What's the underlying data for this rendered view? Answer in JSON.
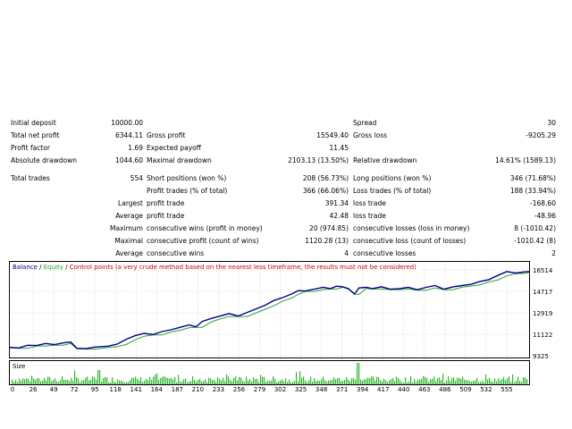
{
  "report": {
    "initial_deposit": {
      "label": "Initial deposit",
      "value": "10000.00"
    },
    "spread": {
      "label": "Spread",
      "value": "30"
    },
    "total_net_profit": {
      "label": "Total net profit",
      "value": "6344.11"
    },
    "gross_profit": {
      "label": "Gross profit",
      "value": "15549.40"
    },
    "gross_loss": {
      "label": "Gross loss",
      "value": "-9205.29"
    },
    "profit_factor": {
      "label": "Profit factor",
      "value": "1.69"
    },
    "expected_payoff": {
      "label": "Expected payoff",
      "value": "11.45"
    },
    "absolute_drawdown": {
      "label": "Absolute drawdown",
      "value": "1044.60"
    },
    "maximal_drawdown": {
      "label": "Maximal drawdown",
      "value": "2103.13 (13.50%)"
    },
    "relative_drawdown": {
      "label": "Relative drawdown",
      "value": "14.61% (1589.13)"
    },
    "total_trades": {
      "label": "Total trades",
      "value": "554"
    },
    "short_positions": {
      "label": "Short positions (won %)",
      "value": "208 (56.73%)"
    },
    "long_positions": {
      "label": "Long positions (won %)",
      "value": "346 (71.68%)"
    },
    "profit_trades": {
      "label": "Profit trades (% of total)",
      "value": "366 (66.06%)"
    },
    "loss_trades": {
      "label": "Loss trades (% of total)",
      "value": "188 (33.94%)"
    },
    "largest": {
      "label": "Largest",
      "profit_label": "profit trade",
      "profit_value": "391.34",
      "loss_label": "loss trade",
      "loss_value": "-168.60"
    },
    "average": {
      "label": "Average",
      "profit_label": "profit trade",
      "profit_value": "42.48",
      "loss_label": "loss trade",
      "loss_value": "-48.96"
    },
    "maximum": {
      "label": "Maximum",
      "wins_label": "consecutive wins (profit in money)",
      "wins_value": "20 (974.85)",
      "losses_label": "consecutive losses (loss in money)",
      "losses_value": "8 (-1010.42)"
    },
    "maximal": {
      "label": "Maximal",
      "profit_label": "consecutive profit (count of wins)",
      "profit_value": "1120.28 (13)",
      "loss_label": "consecutive loss (count of losses)",
      "loss_value": "-1010.42 (8)"
    },
    "average_consecutive": {
      "label": "Average",
      "wins_label": "consecutive wins",
      "wins_value": "4",
      "losses_label": "consecutive losses",
      "losses_value": "2"
    }
  },
  "legend": {
    "balance": "Balance",
    "sep1": " / ",
    "equity": "Equity",
    "sep2": " / ",
    "control": "Control points (a very crude method based on the nearest less timeframe, the results must not be considered)"
  },
  "size_label": "Size",
  "colors": {
    "balance": "#00008b",
    "equity": "#2e9f2e",
    "control": "#d00000",
    "grid": "#c0c0c0",
    "volume": "#2eb82e"
  },
  "chart_data": {
    "type": "line",
    "x_ticks": [
      0,
      26,
      49,
      72,
      95,
      118,
      141,
      164,
      187,
      210,
      233,
      256,
      279,
      302,
      325,
      348,
      371,
      394,
      417,
      440,
      463,
      486,
      509,
      532,
      555
    ],
    "y_ticks": [
      "16514",
      "14717",
      "12919",
      "11122",
      "9325"
    ],
    "ylim": [
      9325,
      16514
    ],
    "xlim": [
      0,
      580
    ],
    "series": [
      {
        "name": "Balance",
        "values": [
          [
            0,
            10020
          ],
          [
            10,
            9980
          ],
          [
            20,
            10200
          ],
          [
            30,
            10180
          ],
          [
            40,
            10350
          ],
          [
            50,
            10250
          ],
          [
            60,
            10400
          ],
          [
            68,
            10480
          ],
          [
            75,
            9950
          ],
          [
            85,
            9920
          ],
          [
            95,
            10050
          ],
          [
            110,
            10130
          ],
          [
            120,
            10300
          ],
          [
            130,
            10700
          ],
          [
            140,
            11000
          ],
          [
            150,
            11200
          ],
          [
            160,
            11100
          ],
          [
            170,
            11350
          ],
          [
            180,
            11500
          ],
          [
            190,
            11700
          ],
          [
            200,
            11900
          ],
          [
            208,
            11750
          ],
          [
            215,
            12200
          ],
          [
            225,
            12450
          ],
          [
            235,
            12650
          ],
          [
            245,
            12850
          ],
          [
            255,
            12650
          ],
          [
            265,
            12950
          ],
          [
            275,
            13250
          ],
          [
            285,
            13550
          ],
          [
            295,
            13950
          ],
          [
            305,
            14200
          ],
          [
            315,
            14500
          ],
          [
            322,
            14780
          ],
          [
            330,
            14750
          ],
          [
            340,
            14900
          ],
          [
            350,
            15050
          ],
          [
            358,
            14950
          ],
          [
            365,
            15150
          ],
          [
            372,
            15100
          ],
          [
            378,
            14950
          ],
          [
            385,
            14500
          ],
          [
            390,
            15000
          ],
          [
            398,
            15050
          ],
          [
            405,
            14950
          ],
          [
            415,
            15100
          ],
          [
            425,
            14900
          ],
          [
            435,
            14950
          ],
          [
            445,
            15050
          ],
          [
            455,
            14850
          ],
          [
            465,
            15050
          ],
          [
            475,
            15200
          ],
          [
            485,
            14900
          ],
          [
            495,
            15100
          ],
          [
            505,
            15200
          ],
          [
            515,
            15300
          ],
          [
            525,
            15550
          ],
          [
            535,
            15700
          ],
          [
            545,
            16050
          ],
          [
            555,
            16380
          ],
          [
            565,
            16250
          ],
          [
            575,
            16350
          ],
          [
            580,
            16380
          ]
        ]
      }
    ],
    "size_series_note": ""
  }
}
